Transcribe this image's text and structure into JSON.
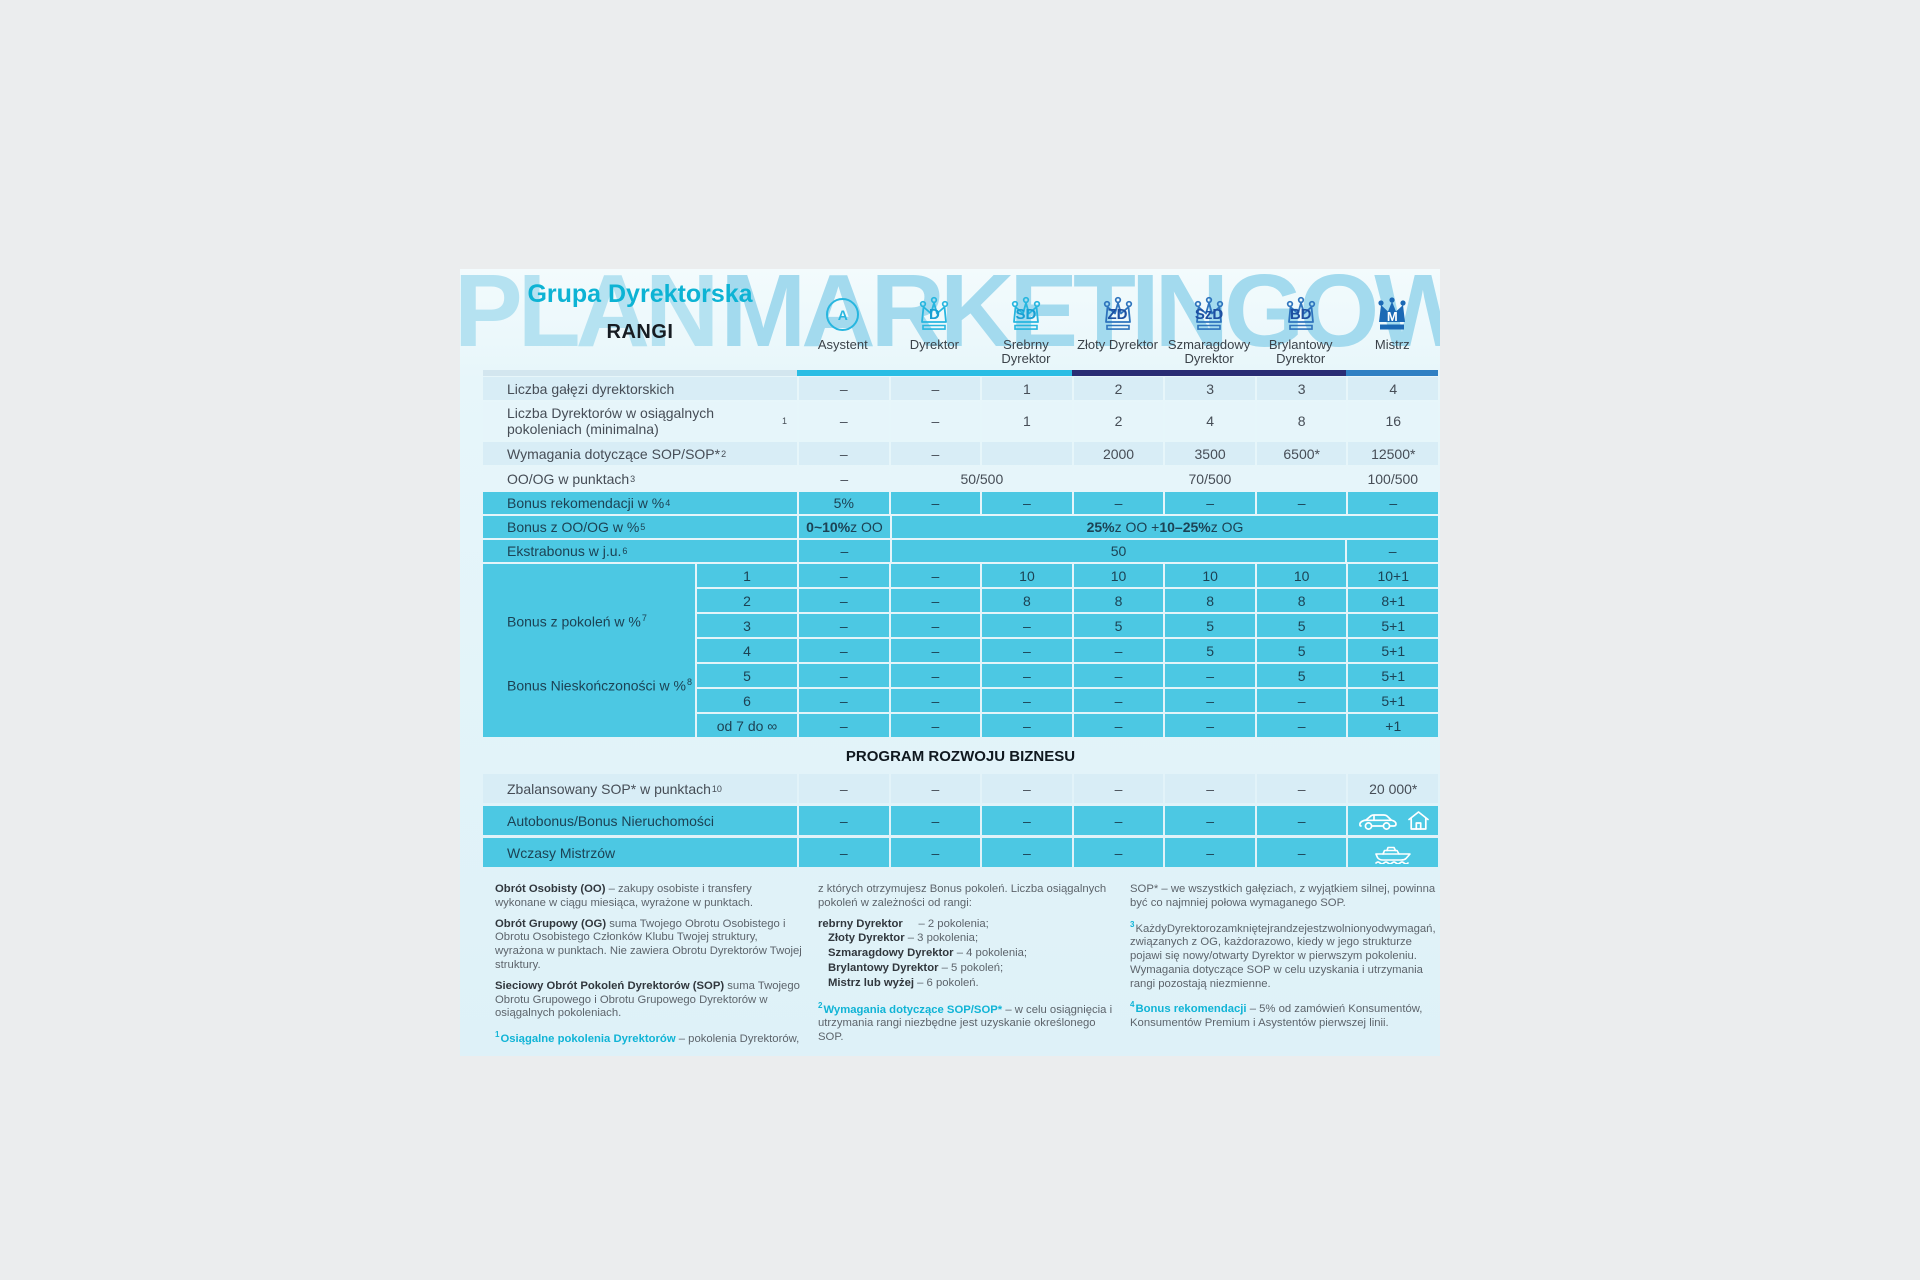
{
  "header": {
    "watermark_part1": "PLAN",
    "watermark_part2": "MARKETINGOWY",
    "group_label": "Grupa Dyrektorska",
    "ranks_heading": "RANGI"
  },
  "colors": {
    "accent_teal": "#10b4d6",
    "cyan_row": "#4cc8e3",
    "light_row_dark": "#d8edf6",
    "light_row_light": "#e6f5fa",
    "bar_cyan": "#2abde4",
    "bar_navy": "#2a2d74",
    "bar_blue": "#2f80c3",
    "crown_cyan": "#27b6df",
    "crown_blue": "#2e74bd",
    "crown_solid": "#1b69b5"
  },
  "ranks": [
    {
      "id": "asystent",
      "icon_text": "A",
      "icon_type": "circle",
      "label": "Asystent"
    },
    {
      "id": "dyrektor",
      "icon_text": "D",
      "icon_type": "crown-cyan",
      "label": "Dyrektor"
    },
    {
      "id": "srebrny-dyrektor",
      "icon_text": "SD",
      "icon_type": "crown-cyan",
      "label": "Srebrny Dyrektor"
    },
    {
      "id": "zloty-dyrektor",
      "icon_text": "ZD",
      "icon_type": "crown-blue",
      "label": "Złoty Dyrektor"
    },
    {
      "id": "szmaragdowy-dyrektor",
      "icon_text": "SzD",
      "icon_type": "crown-blue",
      "label": "Szmaragdowy Dyrektor"
    },
    {
      "id": "brylantowy-dyrektor",
      "icon_text": "BD",
      "icon_type": "crown-blue",
      "label": "Brylantowy Dyrektor"
    },
    {
      "id": "mistrz",
      "icon_text": "M",
      "icon_type": "crown-solid",
      "label": "Mistrz"
    }
  ],
  "main_rows": [
    {
      "label": "Liczba gałęzi dyrektorskich",
      "style": "light",
      "cells": [
        {
          "v": "–"
        },
        {
          "v": "–"
        },
        {
          "v": "1"
        },
        {
          "v": "2"
        },
        {
          "v": "3"
        },
        {
          "v": "3"
        },
        {
          "v": "4"
        }
      ]
    },
    {
      "label": "Liczba Dyrektorów w osiągalnych pokoleniach (minimalna)",
      "sup": "1",
      "style": "light",
      "cells": [
        {
          "v": "–"
        },
        {
          "v": "–"
        },
        {
          "v": "1"
        },
        {
          "v": "2"
        },
        {
          "v": "4"
        },
        {
          "v": "8"
        },
        {
          "v": "16"
        }
      ]
    },
    {
      "label": "Wymagania dotyczące SOP/SOP*",
      "sup": "2",
      "style": "light",
      "cells": [
        {
          "v": "–"
        },
        {
          "v": "–"
        },
        {
          "v": ""
        },
        {
          "v": "2000"
        },
        {
          "v": "3500"
        },
        {
          "v": "6500*"
        },
        {
          "v": "12500*"
        }
      ]
    },
    {
      "label": "OO/OG w punktach",
      "sup": "3",
      "style": "light",
      "cells": [
        {
          "v": "–"
        },
        {
          "v": "50/500",
          "span": 2
        },
        {
          "v": "70/500",
          "span": 3
        },
        {
          "v": "100/500"
        }
      ]
    },
    {
      "label": "Bonus rekomendacji w %",
      "sup": "4",
      "style": "cyan",
      "cells": [
        {
          "v": "5%"
        },
        {
          "v": "–"
        },
        {
          "v": "–"
        },
        {
          "v": "–"
        },
        {
          "v": "–"
        },
        {
          "v": "–"
        },
        {
          "v": "–"
        }
      ]
    },
    {
      "label": "Bonus z OO/OG w %",
      "sup": "5",
      "style": "cyan",
      "cells": [
        {
          "rich": [
            {
              "t": "0~10%",
              "b": true
            },
            {
              "t": " z OO"
            }
          ]
        },
        {
          "span": 6,
          "rich": [
            {
              "t": "25%",
              "b": true
            },
            {
              "t": " z OO + "
            },
            {
              "t": "10–25%",
              "b": true
            },
            {
              "t": " z OG"
            }
          ]
        }
      ]
    },
    {
      "label": "Ekstrabonus w j.u.",
      "sup": "6",
      "style": "cyan",
      "cells": [
        {
          "v": "–"
        },
        {
          "v": "50",
          "span": 5
        },
        {
          "v": "–"
        }
      ]
    }
  ],
  "generations": {
    "label_top": "Bonus z pokoleń w %",
    "label_top_sup": "7",
    "label_bottom": "Bonus Nieskończoności w %",
    "label_bottom_sup": "8",
    "rows": [
      {
        "gen": "1",
        "values": [
          "–",
          "–",
          "10",
          "10",
          "10",
          "10",
          "10+1"
        ]
      },
      {
        "gen": "2",
        "values": [
          "–",
          "–",
          "8",
          "8",
          "8",
          "8",
          "8+1"
        ]
      },
      {
        "gen": "3",
        "values": [
          "–",
          "–",
          "–",
          "5",
          "5",
          "5",
          "5+1"
        ]
      },
      {
        "gen": "4",
        "values": [
          "–",
          "–",
          "–",
          "–",
          "5",
          "5",
          "5+1"
        ]
      },
      {
        "gen": "5",
        "values": [
          "–",
          "–",
          "–",
          "–",
          "–",
          "5",
          "5+1"
        ]
      },
      {
        "gen": "6",
        "values": [
          "–",
          "–",
          "–",
          "–",
          "–",
          "–",
          "5+1"
        ]
      },
      {
        "gen": "od 7 do ∞",
        "values": [
          "–",
          "–",
          "–",
          "–",
          "–",
          "–",
          "+1"
        ]
      }
    ]
  },
  "program": {
    "heading": "PROGRAM ROZWOJU BIZNESU",
    "rows": [
      {
        "label": "Zbalansowany SOP* w punktach",
        "sup": "10",
        "style": "light",
        "cells": [
          {
            "v": "–"
          },
          {
            "v": "–"
          },
          {
            "v": "–"
          },
          {
            "v": "–"
          },
          {
            "v": "–"
          },
          {
            "v": "–"
          },
          {
            "v": "20 000*"
          }
        ]
      },
      {
        "label": "Autobonus/Bonus Nieruchomości",
        "style": "cyan",
        "cells": [
          {
            "v": "–"
          },
          {
            "v": "–"
          },
          {
            "v": "–"
          },
          {
            "v": "–"
          },
          {
            "v": "–"
          },
          {
            "v": "–"
          },
          {
            "icons": [
              "car-icon",
              "house-icon"
            ]
          }
        ]
      },
      {
        "label": "Wczasy Mistrzów",
        "style": "cyan",
        "cells": [
          {
            "v": "–"
          },
          {
            "v": "–"
          },
          {
            "v": "–"
          },
          {
            "v": "–"
          },
          {
            "v": "–"
          },
          {
            "v": "–"
          },
          {
            "icons": [
              "boat-icon"
            ]
          }
        ]
      }
    ]
  },
  "footnotes": {
    "col1": [
      {
        "segs": [
          {
            "t": "Obrót Osobisty (OO)",
            "b": true
          },
          {
            "t": " – zakupy osobiste i transfery wykonane w ciągu miesiąca, wyrażone w punktach."
          }
        ]
      },
      {
        "segs": [
          {
            "t": "Obrót Grupowy (OG)",
            "b": true
          },
          {
            "t": " suma Twojego Obrotu Osobistego i Obrotu Osobistego Członków Klubu Twojej struktury, wyrażona w punktach. Nie zawiera Obrotu Dyrektorów Twojej struktury."
          }
        ]
      },
      {
        "segs": [
          {
            "t": "Sieciowy Obrót Pokoleń Dyrektorów (SOP)",
            "b": true
          },
          {
            "t": " suma Twojego Obrotu Grupowego i Obrotu Grupowego Dyrektorów w osiągalnych pokoleniach."
          }
        ]
      },
      {
        "segs": [
          {
            "t": "1",
            "sup": true
          },
          {
            "t": "Osiągalne pokolenia Dyrektorów",
            "teal": true
          },
          {
            "t": " – pokolenia Dyrektorów,"
          }
        ]
      }
    ],
    "col2": [
      {
        "segs": [
          {
            "t": "z których otrzymujesz Bonus pokoleń. Liczba osiągalnych pokoleń w zależności od rangi:"
          }
        ]
      },
      {
        "tight": true,
        "segs": [
          {
            "t": "rebrny Dyrektor",
            "b": true
          },
          {
            "t": "     – 2 pokolenia;"
          }
        ]
      },
      {
        "tight": true,
        "indent": true,
        "segs": [
          {
            "t": "Złoty Dyrektor",
            "b": true
          },
          {
            "t": " – 3 pokolenia;"
          }
        ]
      },
      {
        "tight": true,
        "indent": true,
        "segs": [
          {
            "t": "Szmaragdowy Dyrektor",
            "b": true
          },
          {
            "t": " – 4 pokolenia;"
          }
        ]
      },
      {
        "tight": true,
        "indent": true,
        "segs": [
          {
            "t": "Brylantowy Dyrektor",
            "b": true
          },
          {
            "t": " – 5 pokoleń;"
          }
        ]
      },
      {
        "gap": true,
        "indent": true,
        "segs": [
          {
            "t": "Mistrz lub wyżej",
            "b": true
          },
          {
            "t": " – 6 pokoleń."
          }
        ]
      },
      {
        "segs": [
          {
            "t": "2",
            "sup": true
          },
          {
            "t": "Wymagania dotyczące SOP/SOP*",
            "teal": true
          },
          {
            "t": " – w celu osiągnięcia i utrzymania rangi niezbędne jest uzyskanie określonego SOP."
          }
        ]
      }
    ],
    "col3": [
      {
        "segs": [
          {
            "t": "SOP* – we wszystkich gałęziach, z wyjątkiem silnej, powinna być co najmniej połowa wymaganego SOP."
          }
        ]
      },
      {
        "segs": [
          {
            "t": "3",
            "sup": true
          },
          {
            "t": "KażdyDyrektorozamkniętejrandzejestzwolnionyodwymagań, związanych z OG, każdorazowo, kiedy w jego strukturze pojawi się nowy/otwarty Dyrektor w pierwszym pokoleniu. Wymagania dotyczące SOP w celu uzyskania i utrzymania rangi pozostają niezmienne."
          }
        ]
      },
      {
        "segs": [
          {
            "t": "4",
            "sup": true
          },
          {
            "t": "Bonus rekomendacji",
            "teal": true
          },
          {
            "t": " – 5% od zamówień Konsumentów, Konsumentów Premium i Asystentów pierwszej linii."
          }
        ]
      }
    ]
  }
}
